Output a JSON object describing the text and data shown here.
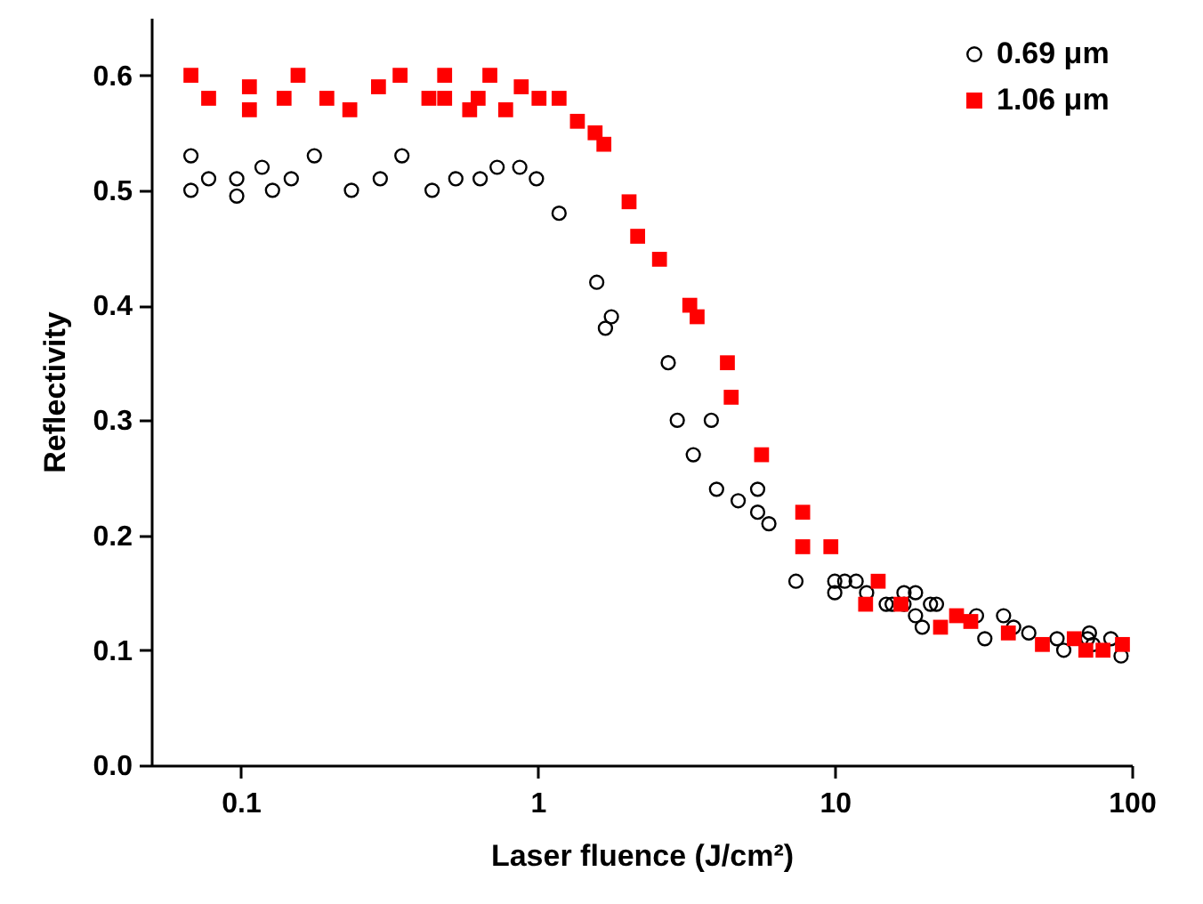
{
  "chart_data": {
    "type": "scatter",
    "xlabel": "Laser fluence (J/cm²)",
    "ylabel": "Reflectivity",
    "log": "x",
    "grid": false,
    "legend": "top right",
    "xlim": [
      0.05,
      100
    ],
    "xticks": [
      0.1,
      1,
      10,
      100
    ],
    "ylim": [
      0,
      0.65
    ],
    "yticks": [
      {
        "value": 0,
        "label": "0.0"
      },
      {
        "value": 0.1,
        "label": "0.1"
      },
      {
        "value": 0.2,
        "label": "0.2"
      },
      {
        "value": 0.3,
        "label": "0.3"
      },
      {
        "value": 0.4,
        "label": "0.4"
      },
      {
        "value": 0.5,
        "label": "0.5"
      },
      {
        "value": 0.6,
        "label": "0.6"
      }
    ],
    "series": [
      {
        "name": "0.69 μm",
        "color": "#000000",
        "marker": "circle",
        "x": [
          0.068,
          0.068,
          0.078,
          0.097,
          0.097,
          0.118,
          0.128,
          0.148,
          0.177,
          0.236,
          0.295,
          0.349,
          0.441,
          0.53,
          0.64,
          0.73,
          0.87,
          0.99,
          1.18,
          1.58,
          1.69,
          1.77,
          2.75,
          2.95,
          3.34,
          3.84,
          4.0,
          4.73,
          5.5,
          5.5,
          6.0,
          7.4,
          10,
          10,
          10.8,
          11.8,
          12.8,
          14.9,
          15.6,
          17.1,
          17.1,
          18.7,
          18.7,
          19.7,
          21,
          22,
          30,
          32,
          37,
          40,
          45,
          56,
          59,
          71,
          72,
          74,
          85,
          92
        ],
        "values": [
          0.53,
          0.5,
          0.51,
          0.51,
          0.495,
          0.52,
          0.5,
          0.51,
          0.53,
          0.5,
          0.51,
          0.53,
          0.5,
          0.51,
          0.51,
          0.52,
          0.52,
          0.51,
          0.48,
          0.42,
          0.38,
          0.39,
          0.35,
          0.3,
          0.27,
          0.3,
          0.24,
          0.23,
          0.22,
          0.24,
          0.21,
          0.16,
          0.15,
          0.16,
          0.16,
          0.16,
          0.15,
          0.14,
          0.14,
          0.15,
          0.14,
          0.13,
          0.15,
          0.12,
          0.14,
          0.14,
          0.13,
          0.11,
          0.13,
          0.12,
          0.115,
          0.11,
          0.1,
          0.11,
          0.115,
          0.105,
          0.11,
          0.095
        ]
      },
      {
        "name": "1.06 μm",
        "color": "#ff0000",
        "marker": "square",
        "x": [
          0.068,
          0.078,
          0.107,
          0.107,
          0.14,
          0.156,
          0.195,
          0.233,
          0.291,
          0.344,
          0.43,
          0.486,
          0.486,
          0.59,
          0.63,
          0.69,
          0.78,
          0.88,
          1.01,
          1.18,
          1.36,
          1.56,
          1.67,
          2.03,
          2.17,
          2.57,
          3.25,
          3.44,
          4.35,
          4.48,
          5.67,
          7.8,
          7.8,
          9.7,
          12.7,
          14.0,
          16.7,
          22.7,
          25.7,
          28.7,
          38.4,
          50,
          64,
          70,
          80,
          93
        ],
        "values": [
          0.6,
          0.58,
          0.59,
          0.57,
          0.58,
          0.6,
          0.58,
          0.57,
          0.59,
          0.6,
          0.58,
          0.6,
          0.58,
          0.57,
          0.58,
          0.6,
          0.57,
          0.59,
          0.58,
          0.58,
          0.56,
          0.55,
          0.54,
          0.49,
          0.46,
          0.44,
          0.4,
          0.39,
          0.35,
          0.32,
          0.27,
          0.22,
          0.19,
          0.19,
          0.14,
          0.16,
          0.14,
          0.12,
          0.13,
          0.125,
          0.115,
          0.105,
          0.11,
          0.1,
          0.1,
          0.105
        ]
      }
    ]
  }
}
